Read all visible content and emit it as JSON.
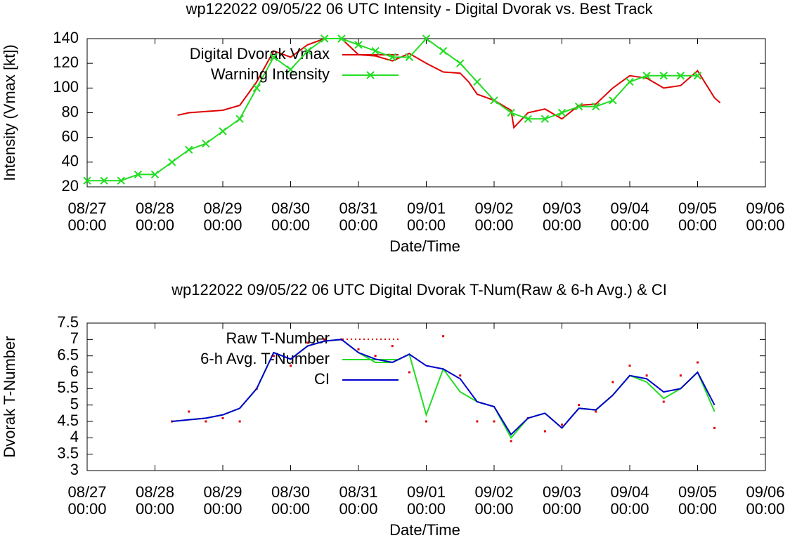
{
  "chart_data": [
    {
      "type": "line",
      "title": "wp122022 09/05/22  06 UTC Intensity - Digital Dvorak vs. Best Track",
      "x_label": "Date/Time",
      "y_label": "Intensity (Vmax [kt])",
      "xlim": [
        "08/27 00:00",
        "09/06 00:00"
      ],
      "xticks": [
        "08/27 00:00",
        "08/28 00:00",
        "08/29 00:00",
        "08/30 00:00",
        "08/31 00:00",
        "09/01 00:00",
        "09/02 00:00",
        "09/03 00:00",
        "09/04 00:00",
        "09/05 00:00",
        "09/06 00:00"
      ],
      "ylim": [
        20,
        140
      ],
      "yticks": [
        20,
        40,
        60,
        80,
        100,
        120,
        140
      ],
      "legend": "top-left",
      "series": [
        {
          "name": "Digital Dvorak Vmax",
          "color": "#e00000",
          "x": [
            "08/28 08:00",
            "08/28 12:00",
            "08/28 18:00",
            "08/29 00:00",
            "08/29 06:00",
            "08/29 12:00",
            "08/29 18:00",
            "08/30 00:00",
            "08/30 06:00",
            "08/30 12:00",
            "08/30 18:00",
            "08/31 00:00",
            "08/31 06:00",
            "08/31 12:00",
            "08/31 18:00",
            "09/01 00:00",
            "09/01 06:00",
            "09/01 12:00",
            "09/01 15:00",
            "09/01 18:00",
            "09/02 00:00",
            "09/02 06:00",
            "09/02 07:00",
            "09/02 12:00",
            "09/02 18:00",
            "09/03 00:00",
            "09/03 06:00",
            "09/03 12:00",
            "09/03 18:00",
            "09/04 00:00",
            "09/04 06:00",
            "09/04 12:00",
            "09/04 18:00",
            "09/05 00:00",
            "09/05 06:00",
            "09/05 08:00"
          ],
          "values": [
            78,
            80,
            81,
            82,
            86,
            105,
            130,
            125,
            135,
            140,
            140,
            127,
            126,
            122,
            128,
            120,
            113,
            112,
            105,
            95,
            90,
            82,
            68,
            80,
            83,
            75,
            86,
            87,
            100,
            110,
            108,
            100,
            102,
            114,
            92,
            88
          ]
        },
        {
          "name": "Warning Intensity",
          "color": "#22dd22",
          "marker": "x",
          "x": [
            "08/27 00:00",
            "08/27 06:00",
            "08/27 12:00",
            "08/27 18:00",
            "08/28 00:00",
            "08/28 06:00",
            "08/28 12:00",
            "08/28 18:00",
            "08/29 00:00",
            "08/29 06:00",
            "08/29 12:00",
            "08/29 18:00",
            "08/30 00:00",
            "08/30 06:00",
            "08/30 12:00",
            "08/30 18:00",
            "08/31 00:00",
            "08/31 06:00",
            "08/31 12:00",
            "08/31 18:00",
            "09/01 00:00",
            "09/01 06:00",
            "09/01 12:00",
            "09/01 18:00",
            "09/02 00:00",
            "09/02 06:00",
            "09/02 12:00",
            "09/02 18:00",
            "09/03 00:00",
            "09/03 06:00",
            "09/03 12:00",
            "09/03 18:00",
            "09/04 00:00",
            "09/04 06:00",
            "09/04 12:00",
            "09/04 18:00",
            "09/05 00:00"
          ],
          "values": [
            25,
            25,
            25,
            30,
            30,
            40,
            50,
            55,
            65,
            75,
            100,
            125,
            115,
            130,
            140,
            140,
            135,
            130,
            125,
            125,
            140,
            130,
            120,
            105,
            90,
            80,
            75,
            75,
            80,
            85,
            85,
            90,
            105,
            110,
            110,
            110,
            110
          ]
        }
      ]
    },
    {
      "type": "line",
      "title": "wp122022 09/05/22  06 UTC Digital Dvorak T-Num(Raw & 6-h Avg.) & CI",
      "x_label": "Date/Time",
      "y_label": "Dvorak T-Number",
      "xlim": [
        "08/27 00:00",
        "09/06 00:00"
      ],
      "xticks": [
        "08/27 00:00",
        "08/28 00:00",
        "08/29 00:00",
        "08/30 00:00",
        "08/31 00:00",
        "09/01 00:00",
        "09/02 00:00",
        "09/03 00:00",
        "09/04 00:00",
        "09/05 00:00",
        "09/06 00:00"
      ],
      "ylim": [
        3,
        7.5
      ],
      "yticks": [
        3,
        3.5,
        4,
        4.5,
        5,
        5.5,
        6,
        6.5,
        7,
        7.5
      ],
      "legend": "top-left",
      "x": [
        "08/28 06:00",
        "08/28 12:00",
        "08/28 18:00",
        "08/29 00:00",
        "08/29 06:00",
        "08/29 12:00",
        "08/29 18:00",
        "08/30 00:00",
        "08/30 06:00",
        "08/30 12:00",
        "08/30 18:00",
        "08/31 00:00",
        "08/31 06:00",
        "08/31 12:00",
        "08/31 18:00",
        "09/01 00:00",
        "09/01 06:00",
        "09/01 12:00",
        "09/01 18:00",
        "09/02 00:00",
        "09/02 06:00",
        "09/02 12:00",
        "09/02 18:00",
        "09/03 00:00",
        "09/03 06:00",
        "09/03 12:00",
        "09/03 18:00",
        "09/04 00:00",
        "09/04 06:00",
        "09/04 12:00",
        "09/04 18:00",
        "09/05 00:00",
        "09/05 06:00"
      ],
      "series": [
        {
          "name": "Raw T-Number",
          "color": "#e00000",
          "style": "dots",
          "values": [
            4.5,
            4.8,
            4.5,
            4.6,
            4.5,
            5.5,
            6.5,
            6.2,
            6.9,
            7,
            7,
            6.7,
            6.5,
            6.8,
            6,
            4.5,
            7.1,
            5.9,
            4.5,
            4.5,
            3.9,
            4.6,
            4.2,
            4.4,
            5,
            4.8,
            5.7,
            6.2,
            5.9,
            5.1,
            5.9,
            6.3,
            4.3
          ]
        },
        {
          "name": "6-h Avg. T-Number",
          "color": "#22dd22",
          "values": [
            4.5,
            4.55,
            4.6,
            4.7,
            4.9,
            5.5,
            6.6,
            6.4,
            6.8,
            6.95,
            7,
            6.6,
            6.3,
            6.3,
            6.55,
            4.7,
            6.1,
            5.4,
            5.1,
            4.95,
            4,
            4.6,
            4.75,
            4.3,
            4.9,
            4.85,
            5.3,
            5.9,
            5.7,
            5.2,
            5.5,
            6,
            4.8
          ]
        },
        {
          "name": "CI",
          "color": "#0000cc",
          "values": [
            4.5,
            4.55,
            4.6,
            4.7,
            4.9,
            5.5,
            6.6,
            6.4,
            6.8,
            6.95,
            7,
            6.6,
            6.4,
            6.3,
            6.55,
            6.2,
            6.1,
            5.8,
            5.1,
            4.95,
            4.1,
            4.6,
            4.75,
            4.3,
            4.9,
            4.85,
            5.3,
            5.9,
            5.8,
            5.4,
            5.5,
            6,
            5
          ]
        }
      ]
    }
  ]
}
